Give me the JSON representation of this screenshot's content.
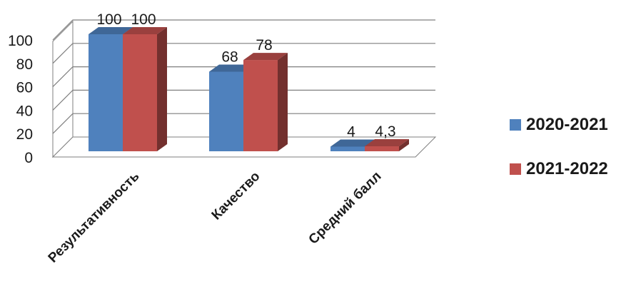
{
  "chart_data": {
    "type": "bar",
    "categories": [
      "Результативность",
      "Качество",
      "Средний балл"
    ],
    "series": [
      {
        "name": "2020-2021",
        "values": [
          100,
          68,
          4
        ],
        "labels": [
          "100",
          "68",
          "4"
        ],
        "color": "#4F81BD"
      },
      {
        "name": "2021-2022",
        "values": [
          100,
          78,
          4.3
        ],
        "labels": [
          "100",
          "78",
          "4,3"
        ],
        "color": "#C0504D"
      }
    ],
    "yticks": [
      "0",
      "20",
      "40",
      "60",
      "80",
      "100"
    ],
    "ylim": [
      0,
      100
    ],
    "grid": true,
    "legend_position": "right"
  }
}
